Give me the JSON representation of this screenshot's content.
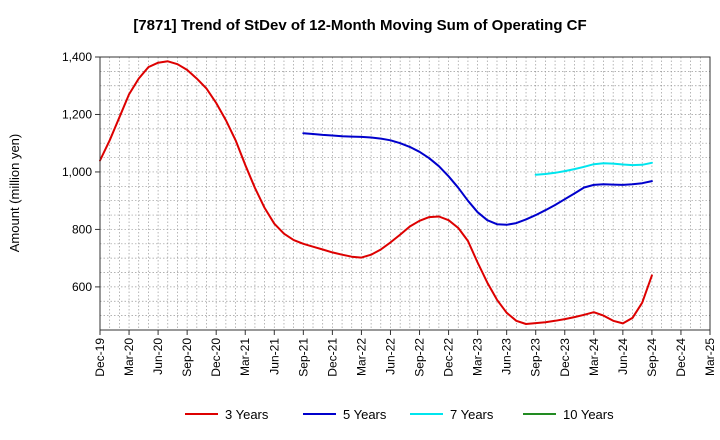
{
  "chart_data": {
    "type": "line",
    "title": "[7871]  Trend of StDev of 12-Month Moving Sum of Operating CF",
    "ylabel": "Amount (million yen)",
    "xlabel": "",
    "ylim": [
      450,
      1400
    ],
    "yticks": [
      600,
      800,
      1000,
      1200,
      1400
    ],
    "ytick_labels": [
      "600",
      "800",
      "1,000",
      "1,200",
      "1,400"
    ],
    "x_range": [
      "Dec-19",
      "Mar-25"
    ],
    "xticks": [
      "Dec-19",
      "Mar-20",
      "Jun-20",
      "Sep-20",
      "Dec-20",
      "Mar-21",
      "Jun-21",
      "Sep-21",
      "Dec-21",
      "Mar-22",
      "Jun-22",
      "Sep-22",
      "Dec-22",
      "Mar-23",
      "Jun-23",
      "Sep-23",
      "Dec-23",
      "Mar-24",
      "Jun-24",
      "Sep-24",
      "Dec-24",
      "Mar-25"
    ],
    "grid": true,
    "legend_position": "bottom",
    "series": [
      {
        "name": "3 Years",
        "color": "#dd0000",
        "x": [
          "Dec-19",
          "Jan-20",
          "Feb-20",
          "Mar-20",
          "Apr-20",
          "May-20",
          "Jun-20",
          "Jul-20",
          "Aug-20",
          "Sep-20",
          "Oct-20",
          "Nov-20",
          "Dec-20",
          "Jan-21",
          "Feb-21",
          "Mar-21",
          "Apr-21",
          "May-21",
          "Jun-21",
          "Jul-21",
          "Aug-21",
          "Sep-21",
          "Oct-21",
          "Nov-21",
          "Dec-21",
          "Jan-22",
          "Feb-22",
          "Mar-22",
          "Apr-22",
          "May-22",
          "Jun-22",
          "Jul-22",
          "Aug-22",
          "Sep-22",
          "Oct-22",
          "Nov-22",
          "Dec-22",
          "Jan-23",
          "Feb-23",
          "Mar-23",
          "Apr-23",
          "May-23",
          "Jun-23",
          "Jul-23",
          "Aug-23",
          "Sep-23",
          "Oct-23",
          "Nov-23",
          "Dec-23",
          "Jan-24",
          "Feb-24",
          "Mar-24",
          "Apr-24",
          "May-24",
          "Jun-24",
          "Jul-24",
          "Aug-24",
          "Sep-24"
        ],
        "values": [
          1040,
          1110,
          1190,
          1270,
          1325,
          1365,
          1380,
          1385,
          1375,
          1355,
          1325,
          1290,
          1240,
          1180,
          1110,
          1025,
          945,
          875,
          820,
          785,
          763,
          750,
          740,
          730,
          720,
          712,
          705,
          702,
          712,
          730,
          755,
          782,
          810,
          830,
          843,
          845,
          832,
          805,
          760,
          685,
          615,
          555,
          510,
          482,
          471,
          474,
          477,
          482,
          488,
          495,
          503,
          512,
          500,
          482,
          473,
          492,
          545,
          640
        ]
      },
      {
        "name": "5 Years",
        "color": "#0000cc",
        "x": [
          "Sep-21",
          "Oct-21",
          "Nov-21",
          "Dec-21",
          "Jan-22",
          "Feb-22",
          "Mar-22",
          "Apr-22",
          "May-22",
          "Jun-22",
          "Jul-22",
          "Aug-22",
          "Sep-22",
          "Oct-22",
          "Nov-22",
          "Dec-22",
          "Jan-23",
          "Feb-23",
          "Mar-23",
          "Apr-23",
          "May-23",
          "Jun-23",
          "Jul-23",
          "Aug-23",
          "Sep-23",
          "Oct-23",
          "Nov-23",
          "Dec-23",
          "Jan-24",
          "Feb-24",
          "Mar-24",
          "Apr-24",
          "May-24",
          "Jun-24",
          "Jul-24",
          "Aug-24",
          "Sep-24"
        ],
        "values": [
          1135,
          1132,
          1129,
          1127,
          1124,
          1123,
          1122,
          1120,
          1116,
          1110,
          1100,
          1087,
          1070,
          1048,
          1020,
          985,
          945,
          900,
          860,
          832,
          818,
          816,
          822,
          835,
          850,
          867,
          885,
          905,
          925,
          946,
          955,
          957,
          956,
          955,
          957,
          961,
          968
        ]
      },
      {
        "name": "7 Years",
        "color": "#00e5ee",
        "x": [
          "Sep-23",
          "Oct-23",
          "Nov-23",
          "Dec-23",
          "Jan-24",
          "Feb-24",
          "Mar-24",
          "Apr-24",
          "May-24",
          "Jun-24",
          "Jul-24",
          "Aug-24",
          "Sep-24"
        ],
        "values": [
          990,
          993,
          997,
          1003,
          1010,
          1018,
          1027,
          1030,
          1029,
          1026,
          1024,
          1025,
          1032
        ]
      },
      {
        "name": "10 Years",
        "color": "#228b22",
        "x": [],
        "values": []
      }
    ]
  }
}
